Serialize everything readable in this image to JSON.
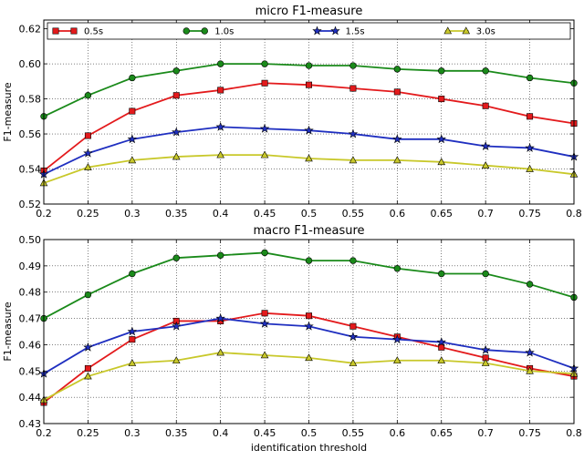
{
  "chart_data": [
    {
      "type": "line",
      "title": "micro F1-measure",
      "xlabel": "",
      "ylabel": "F1-measure",
      "xlim": [
        0.2,
        0.8
      ],
      "ylim": [
        0.52,
        0.625
      ],
      "x": [
        0.2,
        0.25,
        0.3,
        0.35,
        0.4,
        0.45,
        0.5,
        0.55,
        0.6,
        0.65,
        0.7,
        0.75,
        0.8
      ],
      "x_tick_labels": [
        "0.2",
        "0.25",
        "0.3",
        "0.35",
        "0.4",
        "0.45",
        "0.5",
        "0.55",
        "0.6",
        "0.65",
        "0.7",
        "0.75",
        "0.8"
      ],
      "y_ticks": [
        0.52,
        0.54,
        0.56,
        0.58,
        0.6,
        0.62
      ],
      "y_tick_labels": [
        "0.52",
        "0.54",
        "0.56",
        "0.58",
        "0.60",
        "0.62"
      ],
      "grid": true,
      "legend": "top",
      "series": [
        {
          "name": "0.5s",
          "color": "#e31a1c",
          "marker": "square",
          "values": [
            0.539,
            0.559,
            0.573,
            0.582,
            0.585,
            0.589,
            0.588,
            0.586,
            0.584,
            0.58,
            0.576,
            0.57,
            0.566
          ]
        },
        {
          "name": "1.0s",
          "color": "#1a8a1a",
          "marker": "circle",
          "values": [
            0.57,
            0.582,
            0.592,
            0.596,
            0.6,
            0.6,
            0.599,
            0.599,
            0.597,
            0.596,
            0.596,
            0.592,
            0.589
          ]
        },
        {
          "name": "1.5s",
          "color": "#1f2fc0",
          "marker": "star",
          "values": [
            0.537,
            0.549,
            0.557,
            0.561,
            0.564,
            0.563,
            0.562,
            0.56,
            0.557,
            0.557,
            0.553,
            0.552,
            0.547
          ]
        },
        {
          "name": "3.0s",
          "color": "#c8c82a",
          "marker": "triangle",
          "values": [
            0.532,
            0.541,
            0.545,
            0.547,
            0.548,
            0.548,
            0.546,
            0.545,
            0.545,
            0.544,
            0.542,
            0.54,
            0.537
          ]
        }
      ]
    },
    {
      "type": "line",
      "title": "macro F1-measure",
      "xlabel": "identification threshold",
      "ylabel": "F1-measure",
      "xlim": [
        0.2,
        0.8
      ],
      "ylim": [
        0.43,
        0.5
      ],
      "x": [
        0.2,
        0.25,
        0.3,
        0.35,
        0.4,
        0.45,
        0.5,
        0.55,
        0.6,
        0.65,
        0.7,
        0.75,
        0.8
      ],
      "x_tick_labels": [
        "0.2",
        "0.25",
        "0.3",
        "0.35",
        "0.4",
        "0.45",
        "0.5",
        "0.55",
        "0.6",
        "0.65",
        "0.7",
        "0.75",
        "0.8"
      ],
      "y_ticks": [
        0.43,
        0.44,
        0.45,
        0.46,
        0.47,
        0.48,
        0.49,
        0.5
      ],
      "y_tick_labels": [
        "0.43",
        "0.44",
        "0.45",
        "0.46",
        "0.47",
        "0.48",
        "0.49",
        "0.50"
      ],
      "grid": true,
      "legend": "none",
      "series": [
        {
          "name": "0.5s",
          "color": "#e31a1c",
          "marker": "square",
          "values": [
            0.438,
            0.451,
            0.462,
            0.469,
            0.469,
            0.472,
            0.471,
            0.467,
            0.463,
            0.459,
            0.455,
            0.451,
            0.448
          ]
        },
        {
          "name": "1.0s",
          "color": "#1a8a1a",
          "marker": "circle",
          "values": [
            0.47,
            0.479,
            0.487,
            0.493,
            0.494,
            0.495,
            0.492,
            0.492,
            0.489,
            0.487,
            0.487,
            0.483,
            0.478
          ]
        },
        {
          "name": "1.5s",
          "color": "#1f2fc0",
          "marker": "star",
          "values": [
            0.449,
            0.459,
            0.465,
            0.467,
            0.47,
            0.468,
            0.467,
            0.463,
            0.462,
            0.461,
            0.458,
            0.457,
            0.451
          ]
        },
        {
          "name": "3.0s",
          "color": "#c8c82a",
          "marker": "triangle",
          "values": [
            0.439,
            0.448,
            0.453,
            0.454,
            0.457,
            0.456,
            0.455,
            0.453,
            0.454,
            0.454,
            0.453,
            0.45,
            0.449
          ]
        }
      ]
    }
  ]
}
